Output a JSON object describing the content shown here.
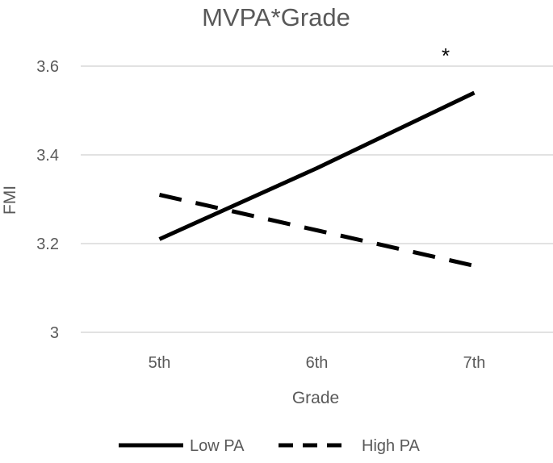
{
  "chart_data": {
    "type": "line",
    "title": "MVPA*Grade",
    "xlabel": "Grade",
    "ylabel": "FMI",
    "categories": [
      "5th",
      "6th",
      "7th"
    ],
    "yticks": [
      "3",
      "3.2",
      "3.4",
      "3.6"
    ],
    "ylim": [
      3.0,
      3.6
    ],
    "grid": true,
    "legend_position": "bottom",
    "series": [
      {
        "name": "Low PA",
        "values": [
          3.21,
          3.37,
          3.54
        ],
        "style": "solid"
      },
      {
        "name": "High PA",
        "values": [
          3.31,
          3.23,
          3.15
        ],
        "style": "dashed"
      }
    ],
    "annotation": "*",
    "colors": {
      "line": "#000000",
      "grid": "#d9d9d9",
      "text": "#595959"
    }
  }
}
